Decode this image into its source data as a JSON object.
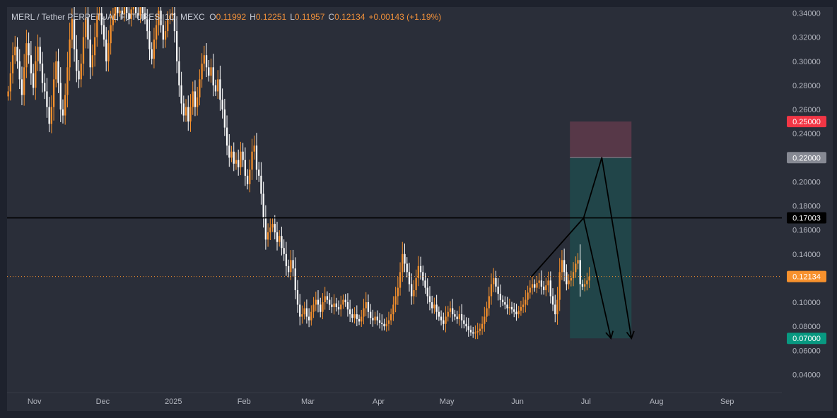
{
  "legend": {
    "symbol": "MERL / Tether PERPETUAL FUTURES, 1D, MEXC",
    "open_label": "O",
    "open": "0.11992",
    "high_label": "H",
    "high": "0.12251",
    "low_label": "L",
    "low": "0.11957",
    "close_label": "C",
    "close": "0.12134",
    "change": "+0.00143 (+1.19%)"
  },
  "colors": {
    "background": "#2a2e39",
    "frame": "#1e222d",
    "up_candle": "#f7912d",
    "down_candle": "#ffffff",
    "horizontal_line": "#000000",
    "stop_zone": "#5c3a4a",
    "target_zone": "#20484b",
    "price_label": "#f7912d",
    "stop_label": "#f23645",
    "entry_label": "#868993",
    "target_label": "#089981",
    "level_label": "#000000"
  },
  "chart_data": {
    "type": "candlestick",
    "title": "MERL / Tether PERPETUAL FUTURES, 1D, MEXC",
    "xlabel": "",
    "ylabel": "",
    "x_range": [
      "2024-10-20",
      "2025-09-25"
    ],
    "ylim": [
      0.025,
      0.345
    ],
    "y_ticks": [
      "0.34000",
      "0.32000",
      "0.30000",
      "0.28000",
      "0.26000",
      "0.24000",
      "0.22000",
      "0.20000",
      "0.18000",
      "0.16000",
      "0.14000",
      "0.12000",
      "0.10000",
      "0.08000",
      "0.06000",
      "0.04000"
    ],
    "x_ticks": [
      {
        "date": "2024-11-01",
        "label": "Nov"
      },
      {
        "date": "2024-12-01",
        "label": "Dec"
      },
      {
        "date": "2025-01-01",
        "label": "2025"
      },
      {
        "date": "2025-02-01",
        "label": "Feb"
      },
      {
        "date": "2025-03-01",
        "label": "Mar"
      },
      {
        "date": "2025-04-01",
        "label": "Apr"
      },
      {
        "date": "2025-05-01",
        "label": "May"
      },
      {
        "date": "2025-06-01",
        "label": "Jun"
      },
      {
        "date": "2025-07-01",
        "label": "Jul"
      },
      {
        "date": "2025-08-01",
        "label": "Aug"
      },
      {
        "date": "2025-09-01",
        "label": "Sep"
      }
    ],
    "series": [
      {
        "start_date": "2024-10-20",
        "interval": "1D",
        "close": [
          0.275,
          0.29,
          0.305,
          0.312,
          0.3,
          0.285,
          0.272,
          0.295,
          0.315,
          0.305,
          0.29,
          0.278,
          0.3,
          0.312,
          0.298,
          0.282,
          0.275,
          0.262,
          0.248,
          0.262,
          0.285,
          0.3,
          0.282,
          0.26,
          0.255,
          0.272,
          0.295,
          0.318,
          0.335,
          0.31,
          0.292,
          0.285,
          0.298,
          0.32,
          0.336,
          0.318,
          0.295,
          0.305,
          0.32,
          0.338,
          0.34,
          0.33,
          0.318,
          0.3,
          0.315,
          0.33,
          0.338,
          0.345,
          0.34,
          0.342,
          0.339,
          0.345,
          0.34,
          0.335,
          0.343,
          0.345,
          0.34,
          0.338,
          0.345,
          0.34,
          0.335,
          0.325,
          0.31,
          0.302,
          0.318,
          0.33,
          0.342,
          0.33,
          0.318,
          0.325,
          0.335,
          0.338,
          0.34,
          0.325,
          0.3,
          0.28,
          0.265,
          0.255,
          0.262,
          0.25,
          0.262,
          0.275,
          0.262,
          0.27,
          0.285,
          0.298,
          0.305,
          0.295,
          0.288,
          0.295,
          0.28,
          0.275,
          0.285,
          0.268,
          0.26,
          0.245,
          0.23,
          0.22,
          0.225,
          0.215,
          0.218,
          0.212,
          0.225,
          0.218,
          0.205,
          0.198,
          0.21,
          0.225,
          0.23,
          0.21,
          0.205,
          0.19,
          0.17,
          0.152,
          0.158,
          0.162,
          0.165,
          0.158,
          0.15,
          0.155,
          0.145,
          0.14,
          0.13,
          0.125,
          0.135,
          0.128,
          0.11,
          0.098,
          0.088,
          0.09,
          0.095,
          0.088,
          0.085,
          0.092,
          0.098,
          0.102,
          0.098,
          0.092,
          0.1,
          0.105,
          0.102,
          0.098,
          0.096,
          0.099,
          0.096,
          0.094,
          0.098,
          0.102,
          0.1,
          0.094,
          0.09,
          0.087,
          0.09,
          0.086,
          0.084,
          0.088,
          0.095,
          0.1,
          0.092,
          0.087,
          0.085,
          0.088,
          0.085,
          0.083,
          0.082,
          0.08,
          0.082,
          0.085,
          0.09,
          0.098,
          0.105,
          0.112,
          0.125,
          0.14,
          0.132,
          0.125,
          0.115,
          0.105,
          0.11,
          0.12,
          0.13,
          0.125,
          0.118,
          0.112,
          0.105,
          0.1,
          0.095,
          0.098,
          0.092,
          0.088,
          0.085,
          0.082,
          0.088,
          0.092,
          0.095,
          0.09,
          0.088,
          0.086,
          0.09,
          0.085,
          0.082,
          0.08,
          0.077,
          0.075,
          0.074,
          0.075,
          0.076,
          0.078,
          0.082,
          0.088,
          0.095,
          0.105,
          0.115,
          0.12,
          0.113,
          0.107,
          0.102,
          0.1,
          0.098,
          0.095,
          0.096,
          0.094,
          0.092,
          0.09,
          0.093,
          0.096,
          0.098,
          0.102,
          0.108,
          0.112,
          0.115,
          0.112,
          0.116,
          0.118,
          0.113,
          0.11,
          0.114,
          0.118,
          0.105,
          0.098,
          0.09,
          0.102,
          0.125,
          0.135,
          0.125,
          0.115,
          0.118,
          0.12,
          0.125,
          0.132,
          0.135,
          0.115,
          0.113,
          0.115,
          0.118,
          0.12134
        ]
      }
    ],
    "horizontal_line": {
      "price": 0.17003,
      "label": "0.17003"
    },
    "last_price": {
      "price": 0.12134,
      "label": "0.12134"
    },
    "position_tool": {
      "type": "short",
      "start_date": "2025-06-24",
      "end_date": "2025-07-21",
      "stop": {
        "price": 0.25,
        "label": "0.25000"
      },
      "entry": {
        "price": 0.22,
        "label": "0.22000"
      },
      "target": {
        "price": 0.07,
        "label": "0.07000"
      }
    },
    "projection_path": [
      {
        "date": "2025-06-07",
        "price": 0.121
      },
      {
        "date": "2025-06-30",
        "price": 0.17
      },
      {
        "date": "2025-07-08",
        "price": 0.22
      },
      {
        "date": "2025-07-21",
        "price": 0.07
      }
    ],
    "projection_branch": [
      {
        "date": "2025-06-30",
        "price": 0.17
      },
      {
        "date": "2025-07-12",
        "price": 0.07
      }
    ]
  }
}
